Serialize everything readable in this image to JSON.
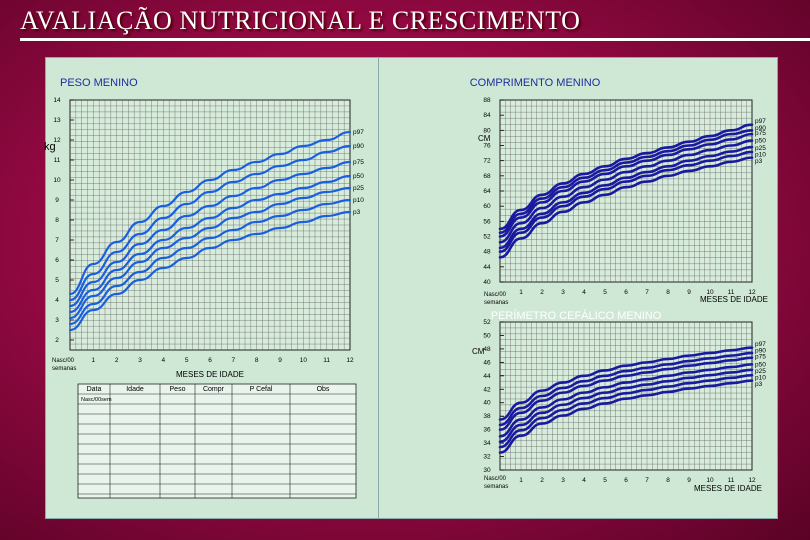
{
  "slide_title": "AVALIAÇÃO NUTRICIONAL E CRESCIMENTO",
  "colors": {
    "background": "#9a0a45",
    "panel": "#cfe8d5",
    "curve_blue": "#1a5fe0",
    "curve_navy": "#1a1aa0",
    "grid": "#222222"
  },
  "chart_data": [
    {
      "id": "peso",
      "type": "line",
      "title": "PESO MENINO",
      "ylabel": "kg",
      "xlabel": "MESES DE IDADE",
      "x_start_label": "Nasc/00 semanas",
      "xticks": [
        "1",
        "2",
        "3",
        "4",
        "5",
        "6",
        "7",
        "8",
        "9",
        "10",
        "11",
        "12"
      ],
      "yticks": [
        "2",
        "3",
        "4",
        "5",
        "6",
        "7",
        "8",
        "9",
        "10",
        "11",
        "12",
        "13",
        "14"
      ],
      "xlim": [
        0,
        12
      ],
      "ylim": [
        1.5,
        14
      ],
      "x": [
        0,
        1,
        2,
        3,
        4,
        5,
        6,
        7,
        8,
        9,
        10,
        11,
        12
      ],
      "series": [
        {
          "name": "p97",
          "values": [
            4.3,
            5.8,
            6.9,
            7.9,
            8.7,
            9.4,
            10.0,
            10.5,
            10.9,
            11.3,
            11.7,
            12.0,
            12.4
          ]
        },
        {
          "name": "p90",
          "values": [
            4.0,
            5.3,
            6.4,
            7.3,
            8.1,
            8.8,
            9.4,
            9.9,
            10.3,
            10.7,
            11.0,
            11.4,
            11.7
          ]
        },
        {
          "name": "p75",
          "values": [
            3.7,
            4.9,
            5.9,
            6.8,
            7.5,
            8.2,
            8.7,
            9.2,
            9.6,
            10.0,
            10.3,
            10.6,
            10.9
          ]
        },
        {
          "name": "p50",
          "values": [
            3.4,
            4.5,
            5.5,
            6.3,
            7.0,
            7.6,
            8.1,
            8.6,
            9.0,
            9.3,
            9.6,
            9.9,
            10.2
          ]
        },
        {
          "name": "p25",
          "values": [
            3.1,
            4.2,
            5.1,
            5.9,
            6.6,
            7.1,
            7.6,
            8.1,
            8.4,
            8.8,
            9.1,
            9.4,
            9.6
          ]
        },
        {
          "name": "p10",
          "values": [
            2.8,
            3.8,
            4.7,
            5.4,
            6.1,
            6.6,
            7.1,
            7.5,
            7.9,
            8.2,
            8.5,
            8.8,
            9.0
          ]
        },
        {
          "name": "p3",
          "values": [
            2.5,
            3.5,
            4.3,
            5.0,
            5.6,
            6.1,
            6.6,
            7.0,
            7.3,
            7.6,
            7.9,
            8.2,
            8.4
          ]
        }
      ]
    },
    {
      "id": "comprimento",
      "type": "line",
      "title": "COMPRIMENTO MENINO",
      "ylabel": "CM",
      "xlabel": "MESES DE IDADE",
      "x_start_label": "Nasc/00 semanas",
      "xticks": [
        "1",
        "2",
        "3",
        "4",
        "5",
        "6",
        "7",
        "8",
        "9",
        "10",
        "11",
        "12"
      ],
      "yticks": [
        "40",
        "44",
        "48",
        "52",
        "56",
        "60",
        "64",
        "68",
        "72",
        "76",
        "80",
        "84",
        "88"
      ],
      "xlim": [
        0,
        12
      ],
      "ylim": [
        40,
        88
      ],
      "x": [
        0,
        1,
        2,
        3,
        4,
        5,
        6,
        7,
        8,
        9,
        10,
        11,
        12
      ],
      "series": [
        {
          "name": "p97",
          "values": [
            54,
            59,
            63,
            66,
            68.5,
            70.5,
            72.5,
            74,
            75.5,
            77,
            78.5,
            80,
            81.5
          ]
        },
        {
          "name": "p90",
          "values": [
            53,
            58,
            62,
            65,
            67.5,
            69.5,
            71.5,
            73,
            74.5,
            76,
            77.5,
            79,
            80
          ]
        },
        {
          "name": "p75",
          "values": [
            52,
            57,
            61,
            64,
            66.5,
            68.5,
            70.5,
            72,
            73.5,
            75,
            76.3,
            77.6,
            79
          ]
        },
        {
          "name": "p50",
          "values": [
            50.5,
            55.5,
            59.5,
            62.5,
            65,
            67,
            69,
            70.5,
            72,
            73.5,
            74.8,
            76,
            77.3
          ]
        },
        {
          "name": "p25",
          "values": [
            49,
            54,
            58,
            61,
            63.5,
            65.5,
            67.5,
            69,
            70.5,
            72,
            73.2,
            74.4,
            75.6
          ]
        },
        {
          "name": "p10",
          "values": [
            48,
            53,
            57,
            60,
            62.5,
            64.5,
            66.5,
            68,
            69.5,
            70.8,
            72,
            73.2,
            74.3
          ]
        },
        {
          "name": "p3",
          "values": [
            46.5,
            51.5,
            55.5,
            58.5,
            61,
            63,
            65,
            66.5,
            68,
            69.3,
            70.5,
            71.7,
            72.8
          ]
        }
      ]
    },
    {
      "id": "perimetro",
      "type": "line",
      "title": "PERÍMETRO CEFÁLICO MENINO",
      "ylabel": "CM",
      "xlabel": "MESES DE IDADE",
      "x_start_label": "Nasc/00 semanas",
      "xticks": [
        "1",
        "2",
        "3",
        "4",
        "5",
        "6",
        "7",
        "8",
        "9",
        "10",
        "11",
        "12"
      ],
      "yticks": [
        "30",
        "32",
        "34",
        "36",
        "38",
        "40",
        "42",
        "44",
        "46",
        "48",
        "50",
        "52"
      ],
      "xlim": [
        0,
        12
      ],
      "ylim": [
        30,
        52
      ],
      "x": [
        0,
        1,
        2,
        3,
        4,
        5,
        6,
        7,
        8,
        9,
        10,
        11,
        12
      ],
      "series": [
        {
          "name": "p97",
          "values": [
            37.5,
            40,
            41.8,
            43,
            44,
            44.8,
            45.5,
            46,
            46.5,
            47,
            47.4,
            47.8,
            48.2
          ]
        },
        {
          "name": "p90",
          "values": [
            36.7,
            39.2,
            41,
            42.2,
            43.2,
            44,
            44.7,
            45.2,
            45.7,
            46.2,
            46.6,
            47,
            47.4
          ]
        },
        {
          "name": "p75",
          "values": [
            36,
            38.5,
            40.3,
            41.5,
            42.5,
            43.3,
            44,
            44.5,
            45,
            45.5,
            45.9,
            46.3,
            46.7
          ]
        },
        {
          "name": "p50",
          "values": [
            35,
            37.5,
            39.3,
            40.5,
            41.5,
            42.3,
            43,
            43.5,
            44,
            44.5,
            44.9,
            45.3,
            45.7
          ]
        },
        {
          "name": "p25",
          "values": [
            34.2,
            36.7,
            38.5,
            39.7,
            40.7,
            41.5,
            42.2,
            42.7,
            43.2,
            43.7,
            44.1,
            44.5,
            44.9
          ]
        },
        {
          "name": "p10",
          "values": [
            33.4,
            35.9,
            37.7,
            38.9,
            39.9,
            40.7,
            41.4,
            41.9,
            42.4,
            42.9,
            43.3,
            43.7,
            44.1
          ]
        },
        {
          "name": "p3",
          "values": [
            32.6,
            35.1,
            36.9,
            38.1,
            39.1,
            39.9,
            40.6,
            41.1,
            41.6,
            42.1,
            42.5,
            42.9,
            43.3
          ]
        }
      ]
    }
  ],
  "record_table": {
    "headers": [
      "Data",
      "Idade",
      "Peso",
      "Compr",
      "P Cefal",
      "Obs"
    ],
    "first_row_idade": "Nasc/00sem"
  }
}
